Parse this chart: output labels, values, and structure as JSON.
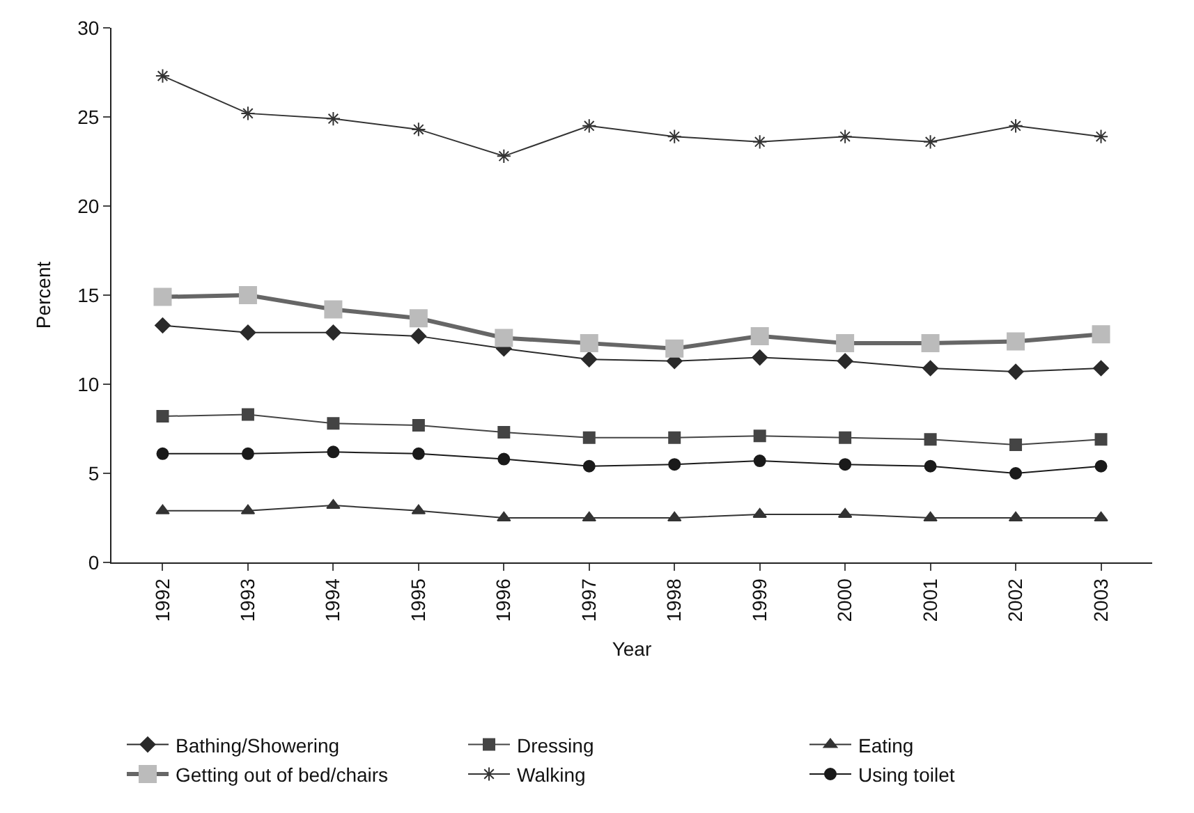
{
  "chart_data": {
    "type": "line",
    "xlabel": "Year",
    "ylabel": "Percent",
    "categories": [
      "1992",
      "1993",
      "1994",
      "1995",
      "1996",
      "1997",
      "1998",
      "1999",
      "2000",
      "2001",
      "2002",
      "2003"
    ],
    "ylim": [
      0,
      30
    ],
    "yticks": [
      0,
      5,
      10,
      15,
      20,
      25,
      30
    ],
    "legend": "bottom",
    "series": [
      {
        "name": "Bathing/Showering",
        "color": "#2a2a2a",
        "marker": "diamond",
        "values": [
          13.3,
          12.9,
          12.9,
          12.7,
          12.0,
          11.4,
          11.3,
          11.5,
          11.3,
          10.9,
          10.7,
          10.9
        ]
      },
      {
        "name": "Dressing",
        "color": "#444444",
        "marker": "square",
        "values": [
          8.2,
          8.3,
          7.8,
          7.7,
          7.3,
          7.0,
          7.0,
          7.1,
          7.0,
          6.9,
          6.6,
          6.9
        ]
      },
      {
        "name": "Eating",
        "color": "#333333",
        "marker": "triangle",
        "values": [
          2.9,
          2.9,
          3.2,
          2.9,
          2.5,
          2.5,
          2.5,
          2.7,
          2.7,
          2.5,
          2.5,
          2.5
        ]
      },
      {
        "name": "Getting out of bed/chairs",
        "color": "#bbbbbb",
        "marker": "square",
        "values": [
          14.9,
          15.0,
          14.2,
          13.7,
          12.6,
          12.3,
          12.0,
          12.7,
          12.3,
          12.3,
          12.4,
          12.8
        ]
      },
      {
        "name": "Walking",
        "color": "#333333",
        "marker": "cross",
        "values": [
          27.3,
          25.2,
          24.9,
          24.3,
          22.8,
          24.5,
          23.9,
          23.6,
          23.9,
          23.6,
          24.5,
          23.9
        ]
      },
      {
        "name": "Using toilet",
        "color": "#1a1a1a",
        "marker": "circle",
        "values": [
          6.1,
          6.1,
          6.2,
          6.1,
          5.8,
          5.4,
          5.5,
          5.7,
          5.5,
          5.4,
          5.0,
          5.4
        ]
      }
    ]
  }
}
